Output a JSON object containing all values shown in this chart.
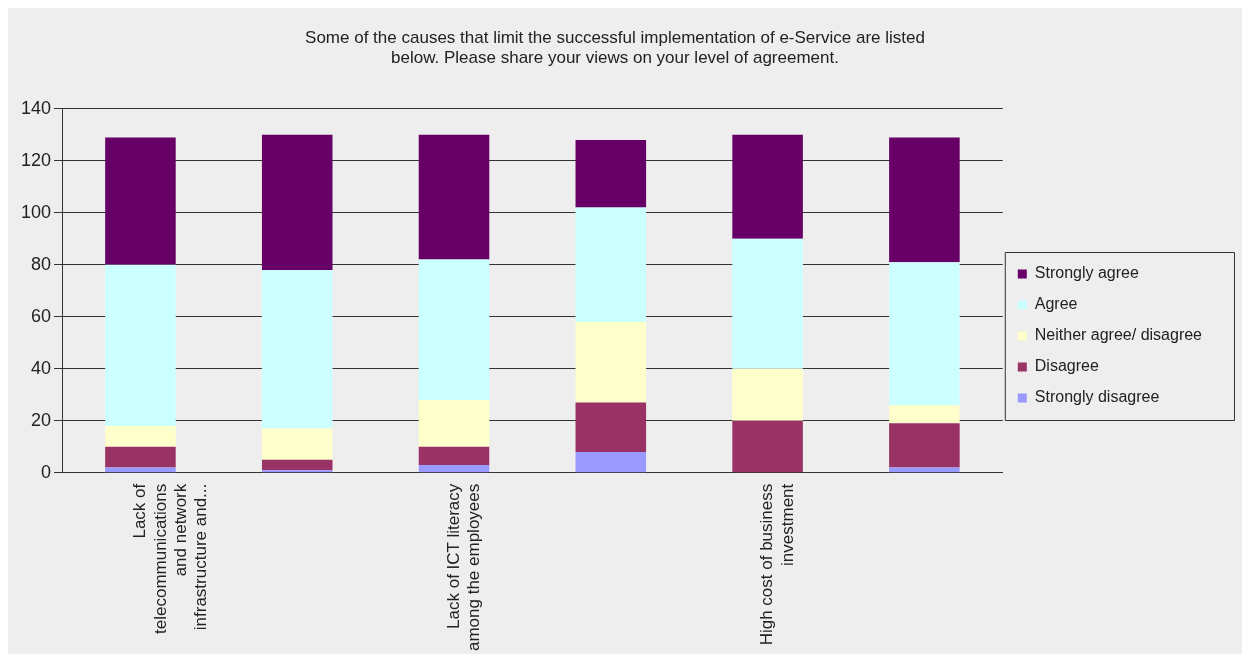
{
  "chart_data": {
    "type": "bar",
    "stacked": true,
    "title": "Some of the causes that limit the successful implementation of e-Service are listed below. Please share your views on your level of agreement.",
    "categories": [
      "Lack of telecommunications and network infrastructure and...",
      null,
      "Lack of ICT literacy among the employees",
      null,
      "High cost of business investment",
      null
    ],
    "series": [
      {
        "name": "Strongly disagree",
        "color": "#9999ff",
        "values": [
          2,
          1,
          3,
          8,
          0,
          2
        ]
      },
      {
        "name": "Disagree",
        "color": "#993366",
        "values": [
          8,
          4,
          7,
          19,
          20,
          17
        ]
      },
      {
        "name": "Neither agree/ disagree",
        "color": "#ffffcc",
        "values": [
          8,
          12,
          18,
          31,
          20,
          7
        ]
      },
      {
        "name": "Agree",
        "color": "#ccffff",
        "values": [
          62,
          61,
          54,
          44,
          50,
          55
        ]
      },
      {
        "name": "Strongly agree",
        "color": "#660066",
        "values": [
          49,
          52,
          48,
          26,
          40,
          48
        ]
      }
    ],
    "ylim": [
      0,
      140
    ],
    "yticks": [
      0,
      20,
      40,
      60,
      80,
      100,
      120,
      140
    ],
    "grid": "y",
    "legend": "right"
  }
}
